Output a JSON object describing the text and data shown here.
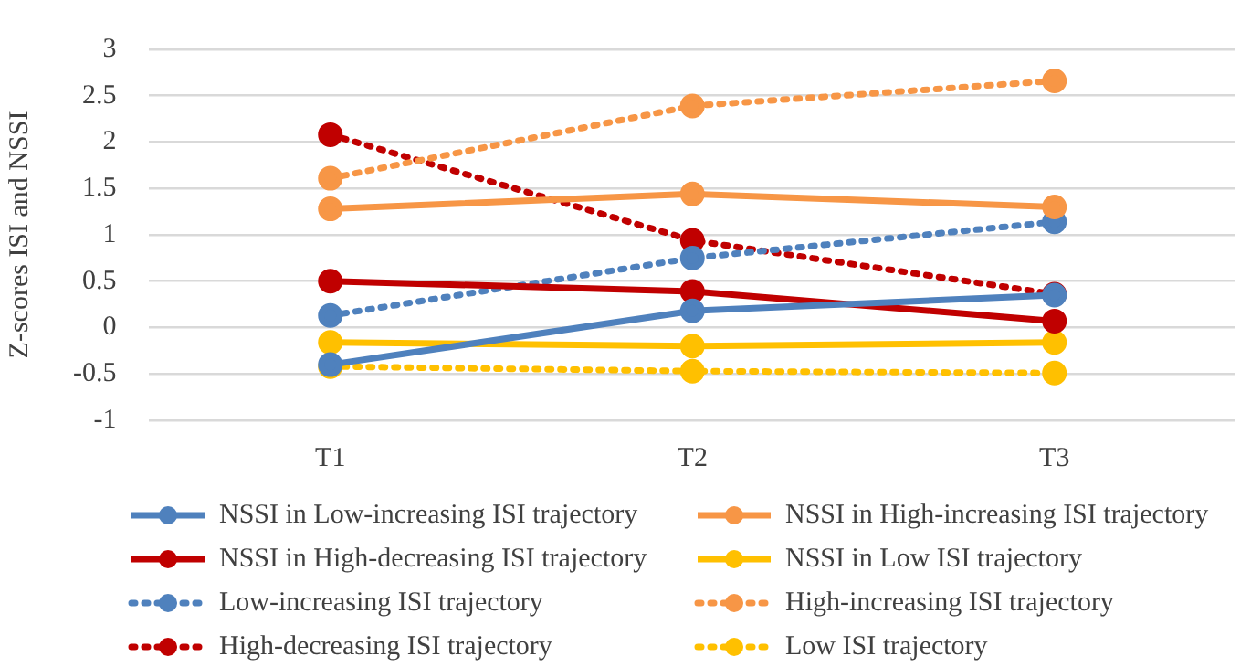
{
  "chart_data": {
    "type": "line",
    "ylabel": "Z-scores ISI and NSSI",
    "categories": [
      "T1",
      "T2",
      "T3"
    ],
    "ylim": [
      -1,
      3
    ],
    "yticks": [
      -1,
      -0.5,
      0,
      0.5,
      1,
      1.5,
      2,
      2.5,
      3
    ],
    "grid": "y",
    "legend": "bottom",
    "marker": "circle",
    "series": [
      {
        "name": "NSSI in Low-increasing ISI trajectory",
        "color": "#4f81bd",
        "line_style": "solid",
        "values": [
          -0.4,
          0.18,
          0.35
        ]
      },
      {
        "name": "NSSI in High-increasing ISI trajectory",
        "color": "#f79646",
        "line_style": "solid",
        "values": [
          1.28,
          1.44,
          1.3
        ]
      },
      {
        "name": "NSSI in High-decreasing ISI trajectory",
        "color": "#c00000",
        "line_style": "solid",
        "values": [
          0.5,
          0.39,
          0.07
        ]
      },
      {
        "name": "NSSI in Low ISI trajectory",
        "color": "#ffc000",
        "line_style": "solid",
        "values": [
          -0.16,
          -0.2,
          -0.16
        ]
      },
      {
        "name": "Low-increasing ISI trajectory",
        "color": "#4f81bd",
        "line_style": "dotted",
        "values": [
          0.13,
          0.75,
          1.14
        ]
      },
      {
        "name": "High-increasing ISI trajectory",
        "color": "#f79646",
        "line_style": "dotted",
        "values": [
          1.61,
          2.39,
          2.66
        ]
      },
      {
        "name": "High-decreasing ISI trajectory",
        "color": "#c00000",
        "line_style": "dotted",
        "values": [
          2.08,
          0.94,
          0.36
        ]
      },
      {
        "name": "Low ISI trajectory",
        "color": "#ffc000",
        "line_style": "dotted",
        "values": [
          -0.42,
          -0.47,
          -0.49
        ]
      }
    ]
  }
}
